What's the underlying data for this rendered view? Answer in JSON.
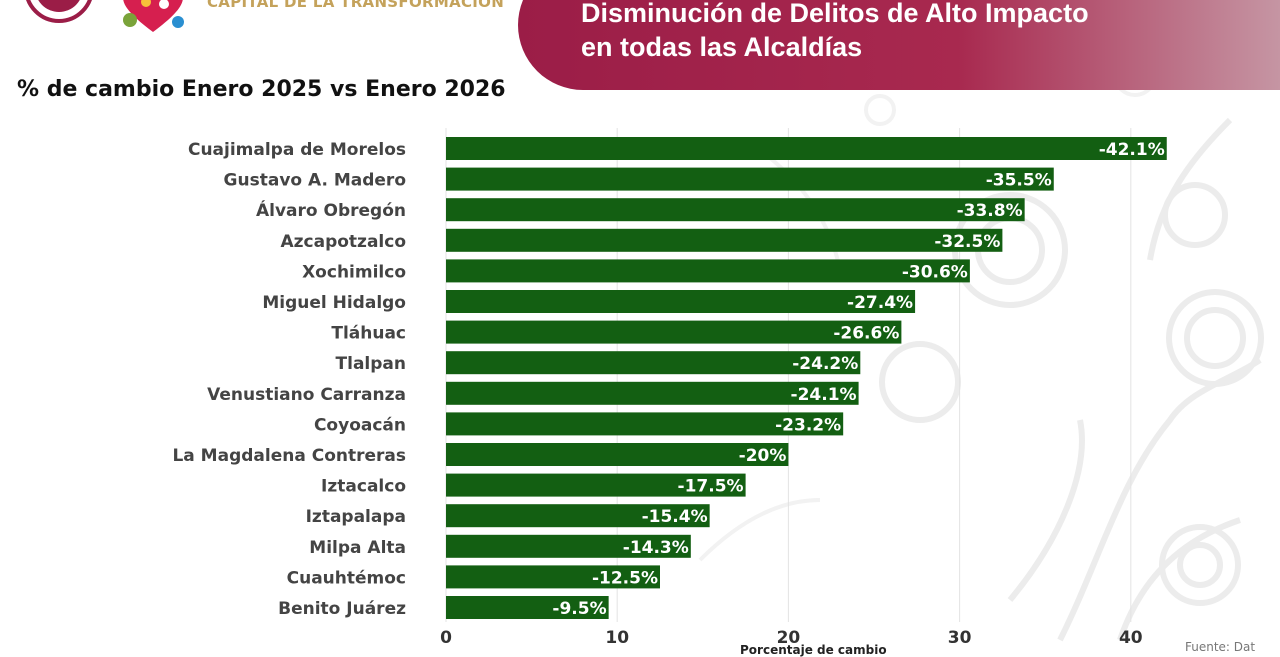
{
  "header": {
    "banner_title_line1": "Disminución de Delitos de Alto Impacto",
    "banner_title_line2": "en todas las Alcaldías",
    "logo_text": "CAPITAL DE LA TRANSFORMACIÓN",
    "source_note": "Fuente: Dat"
  },
  "colors": {
    "bar": "#135f12",
    "banner": "#9b1d47",
    "label_text": "#444444",
    "value_text": "#ffffff"
  },
  "chart_data": {
    "type": "bar",
    "orientation": "horizontal",
    "title": "% de cambio Enero 2025 vs Enero 2026",
    "xlabel": "Porcentaje de cambio",
    "ylabel": "",
    "xlim": [
      0,
      45
    ],
    "xticks": [
      0,
      10,
      20,
      30,
      40
    ],
    "grid": true,
    "categories": [
      "Cuajimalpa de Morelos",
      "Gustavo A. Madero",
      "Álvaro Obregón",
      "Azcapotzalco",
      "Xochimilco",
      "Miguel Hidalgo",
      "Tláhuac",
      "Tlalpan",
      "Venustiano Carranza",
      "Coyoacán",
      "La Magdalena Contreras",
      "Iztacalco",
      "Iztapalapa",
      "Milpa Alta",
      "Cuauhtémoc",
      "Benito Juárez"
    ],
    "values": [
      42.1,
      35.5,
      33.8,
      32.5,
      30.6,
      27.4,
      26.6,
      24.2,
      24.1,
      23.2,
      20,
      17.5,
      15.4,
      14.3,
      12.5,
      9.5
    ],
    "value_labels": [
      "-42.1%",
      "-35.5%",
      "-33.8%",
      "-32.5%",
      "-30.6%",
      "-27.4%",
      "-26.6%",
      "-24.2%",
      "-24.1%",
      "-23.2%",
      "-20%",
      "-17.5%",
      "-15.4%",
      "-14.3%",
      "-12.5%",
      "-9.5%"
    ]
  }
}
